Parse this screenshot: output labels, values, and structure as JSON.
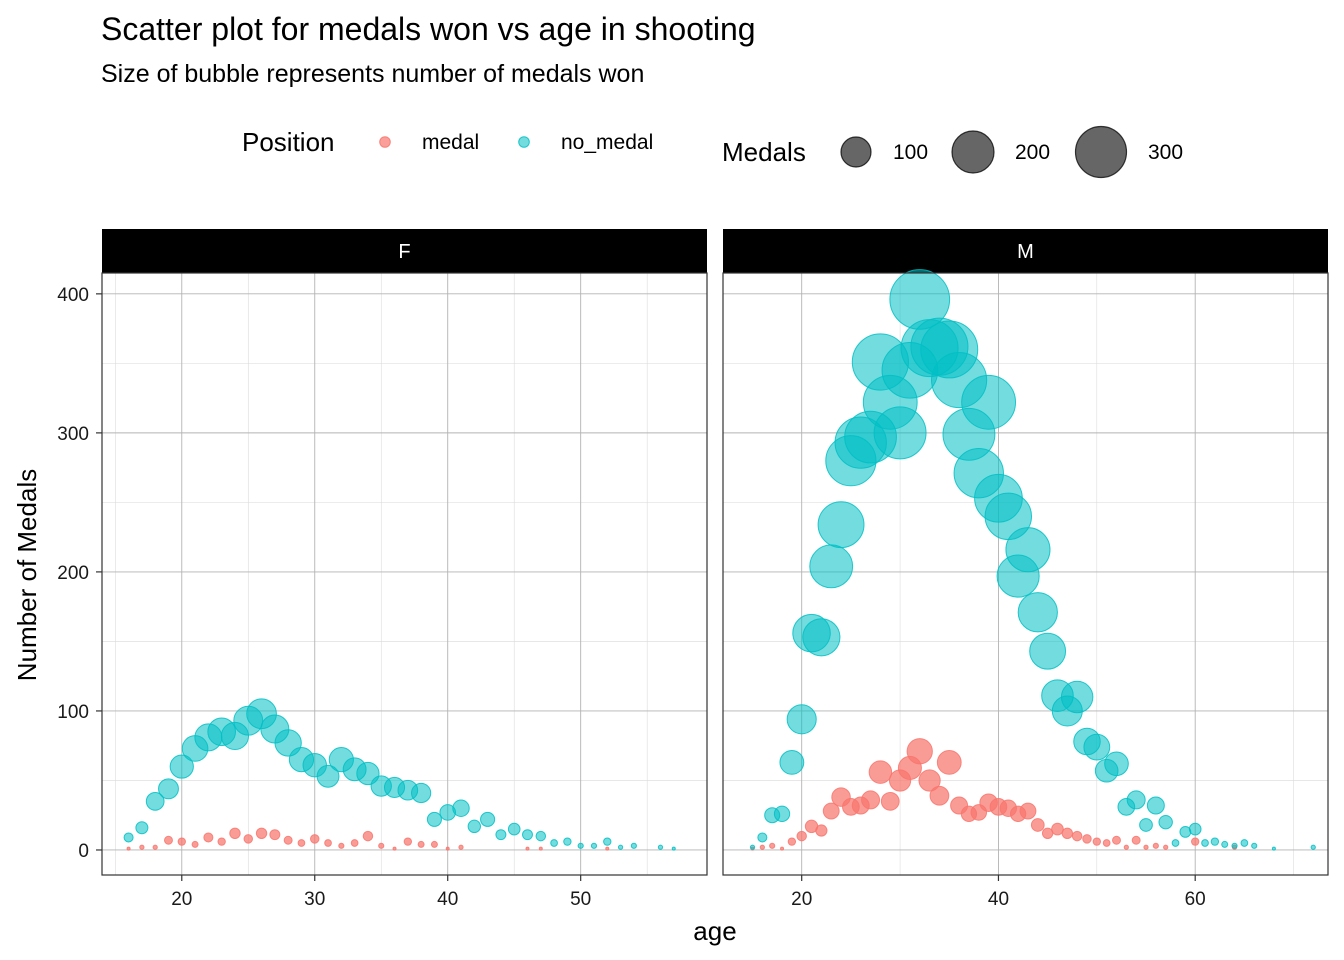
{
  "chart_data": {
    "type": "scatter",
    "title": "Scatter plot for medals won vs age in shooting",
    "subtitle": "Size of bubble represents number of medals won",
    "xlabel": "age",
    "ylabel": "Number of Medals",
    "legend": {
      "placement": "top",
      "color_title": "Position",
      "color_entries": [
        {
          "label": "medal",
          "color": "#F8766D"
        },
        {
          "label": "no_medal",
          "color": "#00BFC4"
        }
      ],
      "size_title": "Medals",
      "size_entries": [
        {
          "label": "100",
          "value": 100
        },
        {
          "label": "200",
          "value": 200
        },
        {
          "label": "300",
          "value": 300
        }
      ]
    },
    "colors": {
      "medal": "#F8766D",
      "no_medal": "#00BFC4",
      "strip": "#000000",
      "strip_text": "#ffffff"
    },
    "grid": true,
    "ylim": [
      -18,
      415
    ],
    "y_ticks": [
      0,
      100,
      200,
      300,
      400
    ],
    "facets": [
      {
        "label": "F",
        "xlim": [
          14,
          59.5
        ],
        "x_ticks": [
          20,
          30,
          40,
          50
        ],
        "series": [
          {
            "name": "medal",
            "points": [
              [
                16,
                1
              ],
              [
                17,
                2
              ],
              [
                18,
                2
              ],
              [
                19,
                7
              ],
              [
                20,
                6
              ],
              [
                21,
                4
              ],
              [
                22,
                9
              ],
              [
                23,
                6
              ],
              [
                24,
                12
              ],
              [
                25,
                8
              ],
              [
                26,
                12
              ],
              [
                27,
                11
              ],
              [
                28,
                7
              ],
              [
                29,
                5
              ],
              [
                30,
                8
              ],
              [
                31,
                5
              ],
              [
                32,
                3
              ],
              [
                33,
                5
              ],
              [
                34,
                10
              ],
              [
                35,
                3
              ],
              [
                36,
                1
              ],
              [
                37,
                6
              ],
              [
                38,
                4
              ],
              [
                39,
                4
              ],
              [
                40,
                1
              ],
              [
                41,
                2
              ],
              [
                46,
                1
              ],
              [
                47,
                1
              ],
              [
                52,
                1
              ]
            ]
          },
          {
            "name": "no_medal",
            "points": [
              [
                16,
                9
              ],
              [
                17,
                16
              ],
              [
                18,
                35
              ],
              [
                19,
                44
              ],
              [
                20,
                60
              ],
              [
                21,
                73
              ],
              [
                22,
                81
              ],
              [
                23,
                85
              ],
              [
                24,
                82
              ],
              [
                25,
                93
              ],
              [
                26,
                98
              ],
              [
                27,
                87
              ],
              [
                28,
                77
              ],
              [
                29,
                65
              ],
              [
                30,
                61
              ],
              [
                31,
                53
              ],
              [
                32,
                65
              ],
              [
                33,
                58
              ],
              [
                34,
                55
              ],
              [
                35,
                46
              ],
              [
                36,
                45
              ],
              [
                37,
                43
              ],
              [
                38,
                41
              ],
              [
                39,
                22
              ],
              [
                40,
                27
              ],
              [
                41,
                30
              ],
              [
                42,
                17
              ],
              [
                43,
                22
              ],
              [
                44,
                11
              ],
              [
                45,
                15
              ],
              [
                46,
                11
              ],
              [
                47,
                10
              ],
              [
                48,
                5
              ],
              [
                49,
                6
              ],
              [
                50,
                3
              ],
              [
                51,
                3
              ],
              [
                52,
                6
              ],
              [
                53,
                2
              ],
              [
                54,
                3
              ],
              [
                56,
                2
              ],
              [
                57,
                1
              ]
            ]
          }
        ]
      },
      {
        "label": "M",
        "xlim": [
          12,
          73.5
        ],
        "x_ticks": [
          20,
          40,
          60
        ],
        "series": [
          {
            "name": "medal",
            "points": [
              [
                15,
                1
              ],
              [
                16,
                2
              ],
              [
                17,
                3
              ],
              [
                18,
                1
              ],
              [
                19,
                6
              ],
              [
                20,
                10
              ],
              [
                21,
                17
              ],
              [
                22,
                14
              ],
              [
                23,
                28
              ],
              [
                24,
                38
              ],
              [
                25,
                31
              ],
              [
                26,
                32
              ],
              [
                27,
                36
              ],
              [
                28,
                56
              ],
              [
                29,
                35
              ],
              [
                30,
                50
              ],
              [
                31,
                59
              ],
              [
                32,
                71
              ],
              [
                33,
                50
              ],
              [
                34,
                39
              ],
              [
                35,
                63
              ],
              [
                36,
                32
              ],
              [
                37,
                26
              ],
              [
                38,
                27
              ],
              [
                39,
                34
              ],
              [
                40,
                31
              ],
              [
                41,
                30
              ],
              [
                42,
                26
              ],
              [
                43,
                28
              ],
              [
                44,
                18
              ],
              [
                45,
                12
              ],
              [
                46,
                15
              ],
              [
                47,
                12
              ],
              [
                48,
                10
              ],
              [
                49,
                8
              ],
              [
                50,
                6
              ],
              [
                51,
                5
              ],
              [
                52,
                7
              ],
              [
                53,
                2
              ],
              [
                54,
                7
              ],
              [
                55,
                2
              ],
              [
                56,
                3
              ],
              [
                57,
                2
              ],
              [
                60,
                6
              ],
              [
                64,
                2
              ]
            ]
          },
          {
            "name": "no_medal",
            "points": [
              [
                15,
                2
              ],
              [
                16,
                9
              ],
              [
                17,
                25
              ],
              [
                18,
                26
              ],
              [
                19,
                63
              ],
              [
                20,
                94
              ],
              [
                21,
                156
              ],
              [
                22,
                153
              ],
              [
                23,
                204
              ],
              [
                24,
                234
              ],
              [
                25,
                280
              ],
              [
                26,
                293
              ],
              [
                27,
                297
              ],
              [
                28,
                351
              ],
              [
                29,
                322
              ],
              [
                30,
                300
              ],
              [
                31,
                345
              ],
              [
                32,
                396
              ],
              [
                33,
                361
              ],
              [
                34,
                362
              ],
              [
                35,
                360
              ],
              [
                36,
                338
              ],
              [
                37,
                299
              ],
              [
                38,
                271
              ],
              [
                39,
                322
              ],
              [
                40,
                253
              ],
              [
                41,
                240
              ],
              [
                42,
                197
              ],
              [
                43,
                216
              ],
              [
                44,
                171
              ],
              [
                45,
                143
              ],
              [
                46,
                111
              ],
              [
                47,
                100
              ],
              [
                48,
                110
              ],
              [
                49,
                78
              ],
              [
                50,
                74
              ],
              [
                51,
                57
              ],
              [
                52,
                62
              ],
              [
                53,
                31
              ],
              [
                54,
                36
              ],
              [
                55,
                18
              ],
              [
                56,
                32
              ],
              [
                57,
                20
              ],
              [
                58,
                5
              ],
              [
                59,
                13
              ],
              [
                60,
                15
              ],
              [
                61,
                5
              ],
              [
                62,
                6
              ],
              [
                63,
                4
              ],
              [
                64,
                3
              ],
              [
                65,
                5
              ],
              [
                66,
                3
              ],
              [
                68,
                1
              ],
              [
                72,
                2
              ]
            ]
          }
        ]
      }
    ]
  }
}
